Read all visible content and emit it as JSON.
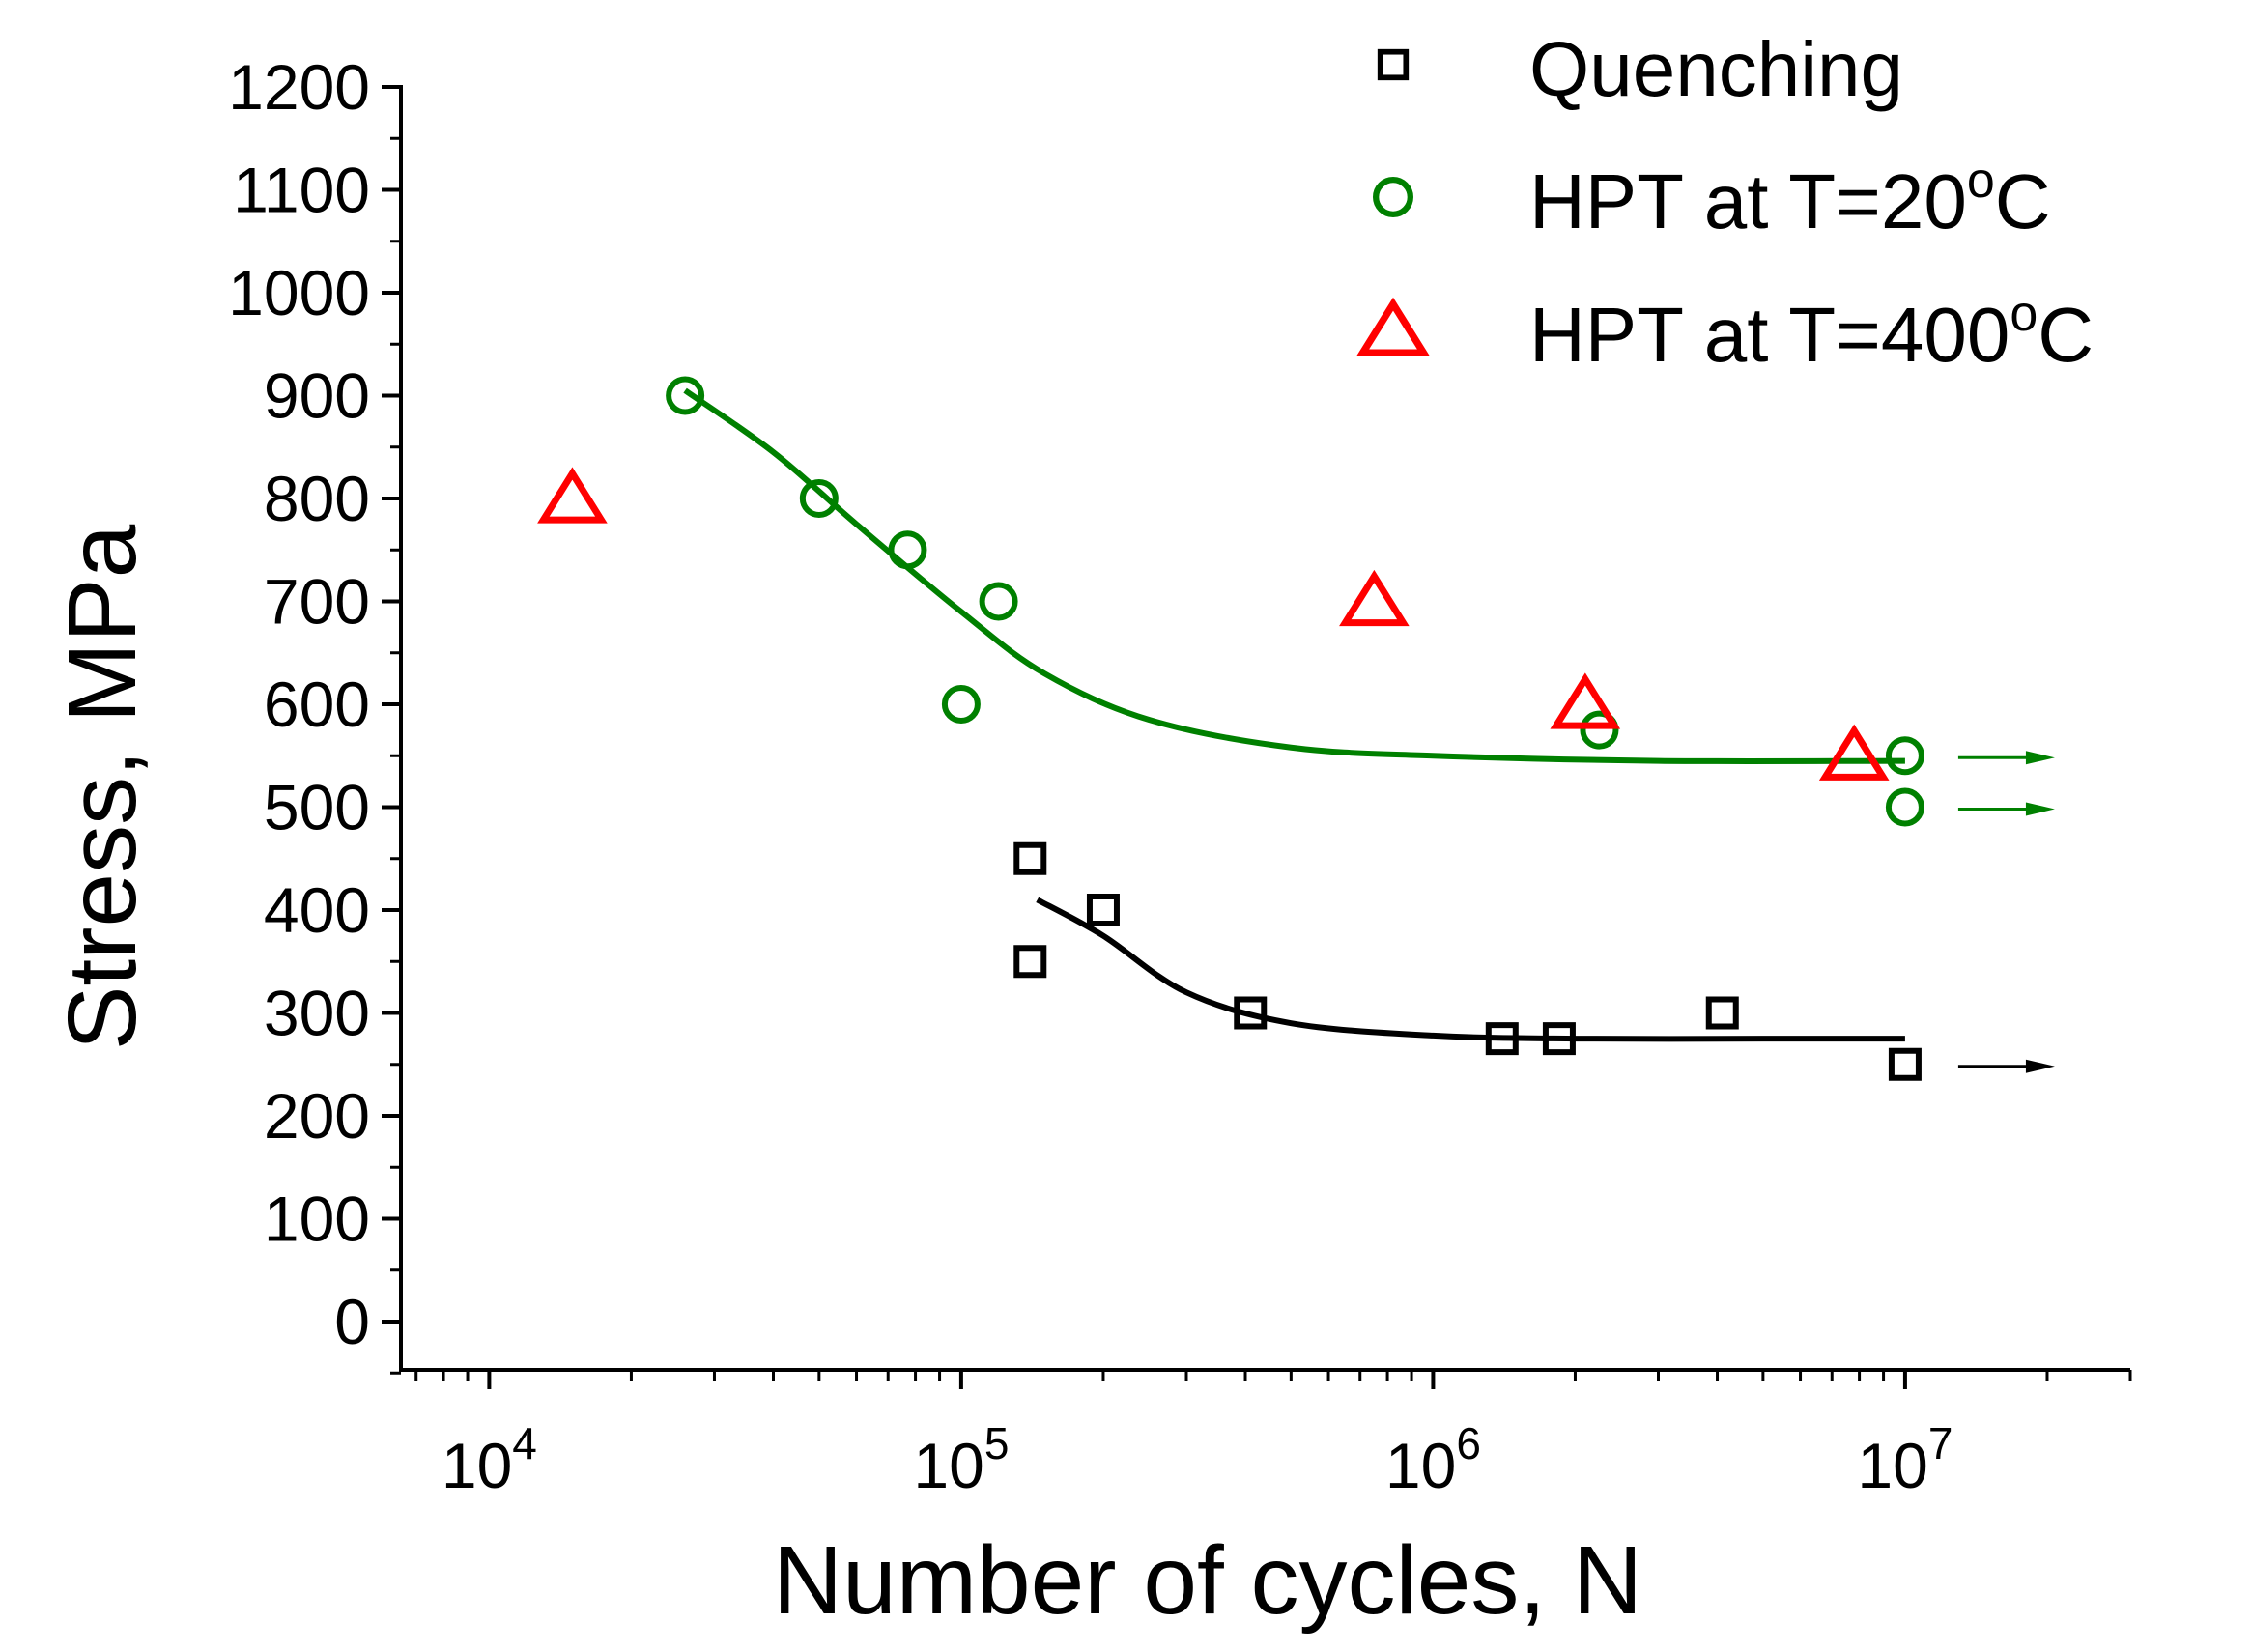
{
  "chart_data": {
    "type": "scatter",
    "title": "",
    "xlabel": "Number of cycles, N",
    "ylabel": "Stress, MPa",
    "xscale": "log",
    "xlim": [
      6500,
      30000000
    ],
    "ylim": [
      -50,
      1200
    ],
    "x_ticks": [
      10000,
      100000,
      1000000,
      10000000
    ],
    "x_tick_labels": [
      {
        "base": "10",
        "exp": "4"
      },
      {
        "base": "10",
        "exp": "5"
      },
      {
        "base": "10",
        "exp": "6"
      },
      {
        "base": "10",
        "exp": "7"
      }
    ],
    "y_ticks": [
      0,
      100,
      200,
      300,
      400,
      500,
      600,
      700,
      800,
      900,
      1000,
      1100,
      1200
    ],
    "y_tick_labels": [
      "0",
      "100",
      "200",
      "300",
      "400",
      "500",
      "600",
      "700",
      "800",
      "900",
      "1000",
      "1100",
      "1200"
    ],
    "grid": false,
    "legend_position": "top-right",
    "series": [
      {
        "name": "Quenching",
        "legend_label": "Quenching",
        "marker": "square",
        "color": "#000000",
        "points": [
          [
            140000,
            450
          ],
          [
            140000,
            350
          ],
          [
            200000,
            400
          ],
          [
            410000,
            300
          ],
          [
            1400000,
            275
          ],
          [
            1850000,
            275
          ],
          [
            4100000,
            300
          ],
          [
            10000000,
            250
          ]
        ],
        "fit": [
          [
            145000,
            410
          ],
          [
            200000,
            375
          ],
          [
            300000,
            320
          ],
          [
            500000,
            290
          ],
          [
            1000000,
            278
          ],
          [
            2000000,
            275
          ],
          [
            5000000,
            275
          ],
          [
            10000000,
            275
          ]
        ],
        "runouts": [
          [
            10000000,
            250
          ]
        ]
      },
      {
        "name": "HPT at T=20°C",
        "legend_label": {
          "prefix": "HPT at T=20",
          "sup": "o",
          "suffix": "C"
        },
        "marker": "circle",
        "color": "#008000",
        "points": [
          [
            26000,
            900
          ],
          [
            50000,
            800
          ],
          [
            77000,
            750
          ],
          [
            100000,
            600
          ],
          [
            120000,
            700
          ],
          [
            2250000,
            575
          ],
          [
            10000000,
            550
          ],
          [
            10000000,
            500
          ]
        ],
        "fit": [
          [
            26000,
            905
          ],
          [
            40000,
            845
          ],
          [
            60000,
            775
          ],
          [
            100000,
            690
          ],
          [
            150000,
            630
          ],
          [
            250000,
            585
          ],
          [
            500000,
            558
          ],
          [
            1000000,
            550
          ],
          [
            3000000,
            545
          ],
          [
            10000000,
            545
          ]
        ],
        "runouts": [
          [
            10000000,
            550
          ],
          [
            10000000,
            500
          ]
        ]
      },
      {
        "name": "HPT at T=400°C",
        "legend_label": {
          "prefix": "HPT at T=400",
          "sup": "o",
          "suffix": "C"
        },
        "marker": "triangle",
        "color": "#ff0000",
        "points": [
          [
            15000,
            800
          ],
          [
            750000,
            700
          ],
          [
            2100000,
            600
          ],
          [
            7800000,
            550
          ]
        ],
        "fit": [],
        "runouts": []
      }
    ]
  }
}
